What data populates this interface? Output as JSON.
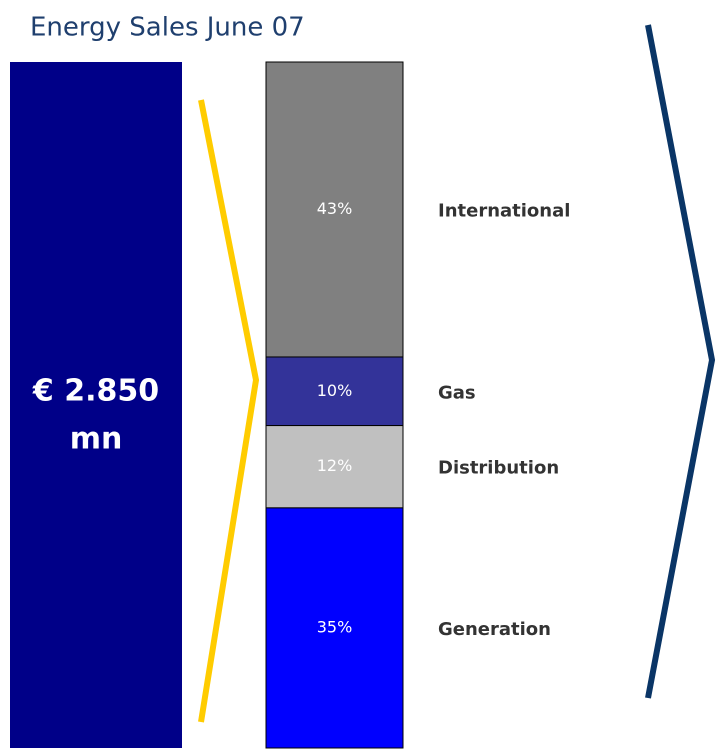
{
  "chart_data": {
    "type": "stacked_bar",
    "title": "Energy Sales June 07",
    "annotations": [
      "€ 2.850",
      "mn"
    ],
    "categories": [
      "International",
      "Gas",
      "Distribution",
      "Generation"
    ],
    "values": [
      43,
      10,
      12,
      35
    ],
    "value_labels": [
      "43%",
      "10%",
      "12%",
      "35%"
    ],
    "colors": [
      "#808080",
      "#333399",
      "#c0c0c0",
      "#0000ff"
    ]
  }
}
